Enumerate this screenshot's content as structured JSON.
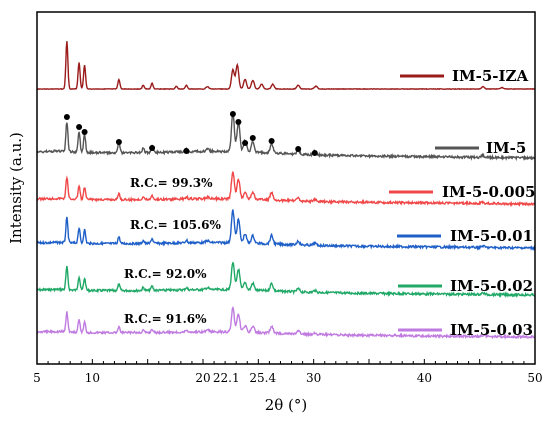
{
  "chart_data": {
    "type": "line",
    "title": "",
    "xlabel": "2θ (°)",
    "ylabel": "Intensity (a.u.)",
    "xlim": [
      5,
      50
    ],
    "x_ticks": [
      {
        "value": 5,
        "label": "5"
      },
      {
        "value": 10,
        "label": "10"
      },
      {
        "value": 20,
        "label": "20"
      },
      {
        "value": 22.1,
        "label": "22.1"
      },
      {
        "value": 25.4,
        "label": "25.4"
      },
      {
        "value": 30,
        "label": "30"
      },
      {
        "value": 40,
        "label": "40"
      },
      {
        "value": 50,
        "label": "50"
      }
    ],
    "y_ticks_shown": false,
    "legend_placement": "right",
    "marker_peaks_2theta": [
      7.7,
      8.8,
      9.3,
      12.4,
      15.4,
      18.5,
      22.7,
      23.2,
      23.8,
      24.5,
      26.2,
      28.6,
      30.1
    ],
    "series": [
      {
        "name": "IM-5-IZA",
        "color": "#9b1b1b",
        "peaks": [
          [
            7.7,
            1.0
          ],
          [
            8.8,
            0.55
          ],
          [
            9.3,
            0.5
          ],
          [
            12.4,
            0.2
          ],
          [
            14.6,
            0.08
          ],
          [
            15.4,
            0.12
          ],
          [
            17.6,
            0.06
          ],
          [
            18.5,
            0.08
          ],
          [
            20.4,
            0.05
          ],
          [
            22.7,
            0.4
          ],
          [
            23.1,
            0.5
          ],
          [
            23.8,
            0.2
          ],
          [
            24.5,
            0.18
          ],
          [
            25.3,
            0.1
          ],
          [
            26.3,
            0.1
          ],
          [
            28.6,
            0.08
          ],
          [
            30.2,
            0.06
          ],
          [
            45.3,
            0.05
          ],
          [
            47.0,
            0.03
          ]
        ]
      },
      {
        "name": "IM-5",
        "color": "#555555",
        "peaks": [
          [
            7.7,
            0.62
          ],
          [
            8.8,
            0.42
          ],
          [
            9.3,
            0.38
          ],
          [
            12.4,
            0.22
          ],
          [
            14.6,
            0.1
          ],
          [
            15.4,
            0.14
          ],
          [
            18.5,
            0.08
          ],
          [
            20.4,
            0.05
          ],
          [
            22.7,
            0.8
          ],
          [
            23.2,
            0.62
          ],
          [
            23.8,
            0.25
          ],
          [
            24.5,
            0.22
          ],
          [
            26.2,
            0.2
          ],
          [
            28.6,
            0.08
          ],
          [
            30.1,
            0.06
          ],
          [
            45.3,
            0.04
          ]
        ]
      },
      {
        "name": "IM-5-0.005",
        "color": "#f04848",
        "rc_label": "R.C.= 99.3%",
        "peaks": [
          [
            7.7,
            0.62
          ],
          [
            8.8,
            0.38
          ],
          [
            9.3,
            0.34
          ],
          [
            12.4,
            0.18
          ],
          [
            14.6,
            0.08
          ],
          [
            15.4,
            0.12
          ],
          [
            18.5,
            0.07
          ],
          [
            20.4,
            0.05
          ],
          [
            22.7,
            0.78
          ],
          [
            23.2,
            0.58
          ],
          [
            23.8,
            0.22
          ],
          [
            24.5,
            0.2
          ],
          [
            26.2,
            0.22
          ],
          [
            28.6,
            0.08
          ],
          [
            30.1,
            0.06
          ],
          [
            45.3,
            0.04
          ]
        ]
      },
      {
        "name": "IM-5-0.01",
        "color": "#1f5fc8",
        "rc_label": "R.C.= 105.6%",
        "peaks": [
          [
            7.7,
            0.65
          ],
          [
            8.8,
            0.4
          ],
          [
            9.3,
            0.36
          ],
          [
            12.4,
            0.18
          ],
          [
            14.6,
            0.08
          ],
          [
            15.4,
            0.13
          ],
          [
            18.5,
            0.07
          ],
          [
            20.4,
            0.05
          ],
          [
            22.7,
            0.85
          ],
          [
            23.2,
            0.62
          ],
          [
            23.8,
            0.24
          ],
          [
            24.5,
            0.2
          ],
          [
            26.2,
            0.22
          ],
          [
            28.6,
            0.1
          ],
          [
            30.1,
            0.06
          ],
          [
            45.3,
            0.04
          ]
        ]
      },
      {
        "name": "IM-5-0.02",
        "color": "#1fa866",
        "rc_label": "R.C.= 92.0%",
        "peaks": [
          [
            7.7,
            0.6
          ],
          [
            8.8,
            0.36
          ],
          [
            9.3,
            0.32
          ],
          [
            12.4,
            0.16
          ],
          [
            14.6,
            0.08
          ],
          [
            15.4,
            0.11
          ],
          [
            18.5,
            0.06
          ],
          [
            20.4,
            0.05
          ],
          [
            22.7,
            0.72
          ],
          [
            23.2,
            0.55
          ],
          [
            23.8,
            0.2
          ],
          [
            24.5,
            0.18
          ],
          [
            26.2,
            0.2
          ],
          [
            28.6,
            0.08
          ],
          [
            30.1,
            0.05
          ],
          [
            45.3,
            0.04
          ]
        ]
      },
      {
        "name": "IM-5-0.03",
        "color": "#c07be0",
        "rc_label": "R.C.= 91.6%",
        "peaks": [
          [
            7.7,
            0.58
          ],
          [
            8.8,
            0.35
          ],
          [
            9.3,
            0.3
          ],
          [
            12.4,
            0.16
          ],
          [
            14.6,
            0.07
          ],
          [
            15.4,
            0.1
          ],
          [
            18.5,
            0.06
          ],
          [
            20.4,
            0.05
          ],
          [
            22.7,
            0.7
          ],
          [
            23.2,
            0.52
          ],
          [
            23.8,
            0.2
          ],
          [
            24.5,
            0.18
          ],
          [
            26.2,
            0.2
          ],
          [
            28.6,
            0.08
          ],
          [
            30.1,
            0.05
          ],
          [
            45.3,
            0.04
          ]
        ]
      }
    ]
  }
}
